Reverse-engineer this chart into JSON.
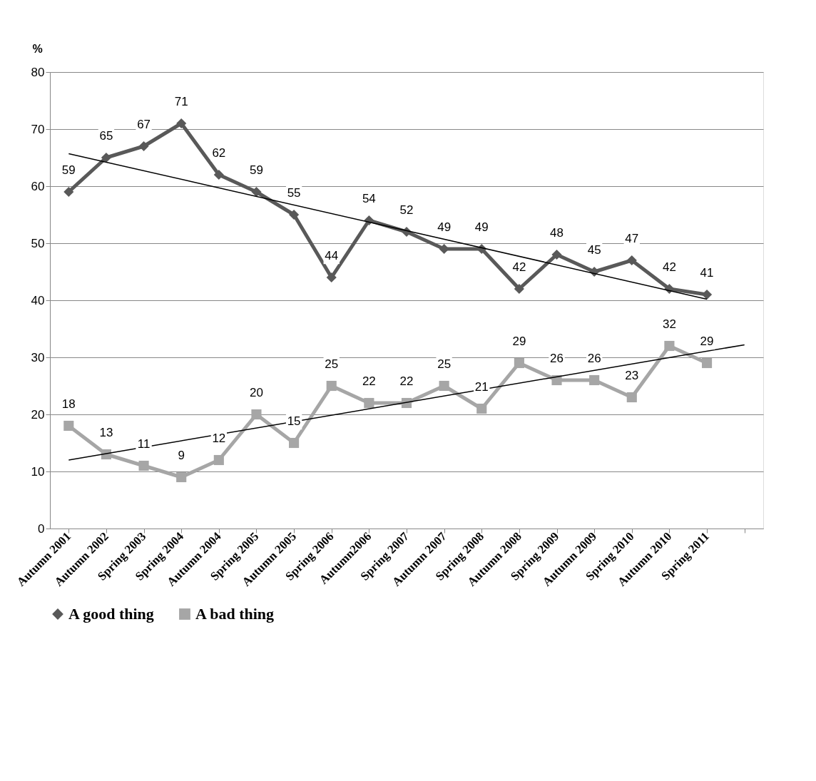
{
  "chart_data": {
    "type": "line",
    "ylabel": "%",
    "categories": [
      "Autumn 2001",
      "Autumn 2002",
      "Spring 2003",
      "Spring 2004",
      "Autumn 2004",
      "Spring 2005",
      "Autumn 2005",
      "Spring 2006",
      "Autumn2006",
      "Spring 2007",
      "Autumn 2007",
      "Spring 2008",
      "Autumn 2008",
      "Spring 2009",
      "Autumn 2009",
      "Spring 2010",
      "Autumn 2010",
      "Spring 2011",
      null
    ],
    "series": [
      {
        "name": "A good thing",
        "color": "#595959",
        "marker": "diamond",
        "values": [
          59,
          65,
          67,
          71,
          62,
          59,
          55,
          44,
          54,
          52,
          49,
          49,
          42,
          48,
          45,
          47,
          42,
          41,
          null
        ],
        "value_labels": [
          "59",
          "65",
          "67",
          "71",
          "62",
          "59",
          "55",
          "44",
          "54",
          "52",
          "49",
          "49",
          "42",
          "48",
          "45",
          "47",
          "42",
          "41",
          null
        ]
      },
      {
        "name": "A bad thing",
        "color": "#a6a6a6",
        "marker": "square",
        "values": [
          18,
          13,
          11,
          9,
          12,
          20,
          15,
          25,
          22,
          22,
          25,
          21,
          29,
          26,
          26,
          23,
          32,
          29,
          null
        ],
        "value_labels": [
          "18",
          "13",
          "11",
          "9",
          "12",
          "20",
          "15",
          "25",
          "22",
          "22",
          "25",
          "21",
          "29",
          "26",
          "26",
          "23",
          "32",
          "29",
          null
        ]
      },
      {
        "type": "line",
        "color": "#000000",
        "marker": "none",
        "values": [
          65.7,
          null,
          null,
          null,
          null,
          null,
          null,
          null,
          null,
          null,
          null,
          null,
          null,
          null,
          null,
          null,
          null,
          40.2,
          null
        ]
      },
      {
        "type": "line",
        "color": "#000000",
        "marker": "none",
        "values": [
          12,
          null,
          null,
          null,
          null,
          null,
          null,
          null,
          null,
          null,
          null,
          null,
          null,
          null,
          null,
          null,
          null,
          null,
          32.2
        ]
      }
    ],
    "ylim": [
      0,
      80
    ],
    "yticks": [
      0,
      10,
      20,
      30,
      40,
      50,
      60,
      70,
      80
    ],
    "grid": "y",
    "legend": "bottom"
  }
}
